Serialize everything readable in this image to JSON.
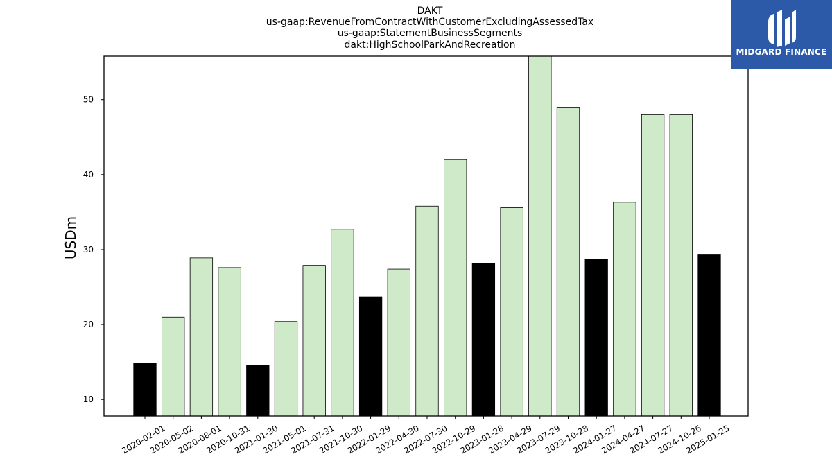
{
  "title_lines": [
    "DAKT",
    "us-gaap:RevenueFromContractWithCustomerExcludingAssessedTax",
    "us-gaap:StatementBusinessSegments",
    "dakt:HighSchoolParkAndRecreation"
  ],
  "logo": {
    "text": "MIDGARD FINANCE",
    "icon": "midgard-logo-icon",
    "bg_color": "#2c5aa8"
  },
  "colors": {
    "highlight": "#000000",
    "normal": "#cfeac8",
    "edge": "#000000"
  },
  "chart_data": {
    "type": "bar",
    "ylabel": "USDm",
    "xlabel": "",
    "ylim": [
      7.8,
      55.8
    ],
    "yticks": [
      10,
      20,
      30,
      40,
      50
    ],
    "grid": false,
    "categories": [
      "2020-02-01",
      "2020-05-02",
      "2020-08-01",
      "2020-10-31",
      "2021-01-30",
      "2021-05-01",
      "2021-07-31",
      "2021-10-30",
      "2022-01-29",
      "2022-04-30",
      "2022-07-30",
      "2022-10-29",
      "2023-01-28",
      "2023-04-29",
      "2023-07-29",
      "2023-10-28",
      "2024-01-27",
      "2024-04-27",
      "2024-07-27",
      "2024-10-26",
      "2025-01-25"
    ],
    "values": [
      14.8,
      21.0,
      28.9,
      27.6,
      14.6,
      20.4,
      27.9,
      32.7,
      23.7,
      27.4,
      35.8,
      42.0,
      28.2,
      35.6,
      55.8,
      48.9,
      28.7,
      36.3,
      48.0,
      48.0,
      29.3
    ],
    "highlight": [
      true,
      false,
      false,
      false,
      true,
      false,
      false,
      false,
      true,
      false,
      false,
      false,
      true,
      false,
      false,
      false,
      true,
      false,
      false,
      false,
      true
    ]
  }
}
